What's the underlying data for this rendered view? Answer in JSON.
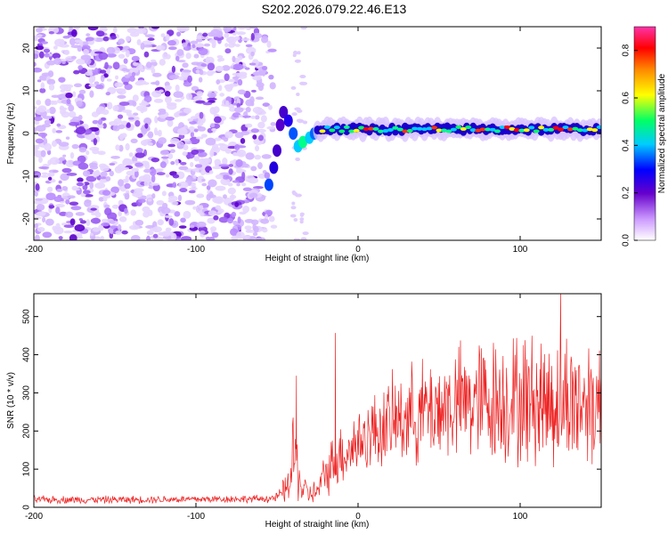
{
  "title": "S202.2026.079.22.46.E13",
  "chart_data": [
    {
      "type": "heatmap",
      "xlabel": "Height of straight line (km)",
      "ylabel": "Frequency (Hz)",
      "xlim": [
        -200,
        150
      ],
      "ylim": [
        -25,
        25
      ],
      "xticks": [
        -200,
        -100,
        0,
        100
      ],
      "yticks": [
        -20,
        -10,
        0,
        10,
        20
      ],
      "colorbar": {
        "label": "Normalized spectral amplitude",
        "range": [
          0,
          0.9
        ],
        "ticks": [
          0,
          0.2,
          0.4,
          0.6,
          0.8
        ],
        "tick_labels": [
          "0.0",
          "0.2",
          "0.4",
          "0.6",
          "0.8"
        ],
        "colormap": [
          "#ffffff",
          "#cc99ff",
          "#6600cc",
          "#0000ff",
          "#00ccff",
          "#00ff66",
          "#ffff00",
          "#ff8800",
          "#ff0000",
          "#ff33aa"
        ]
      },
      "signal": {
        "noise_region_km": [
          -200,
          -55
        ],
        "transition_km": [
          -55,
          -20
        ],
        "band_center_hz": 1,
        "band_start_km": -25,
        "band_end_km": 150
      }
    },
    {
      "type": "line",
      "xlabel": "Height of straight line (km)",
      "ylabel": "SNR (10 * v/v)",
      "xlim": [
        -200,
        150
      ],
      "ylim": [
        0,
        560
      ],
      "xticks": [
        -200,
        -100,
        0,
        100
      ],
      "yticks": [
        0,
        100,
        200,
        300,
        400,
        500
      ],
      "color": "#ee2222",
      "series": [
        {
          "name": "SNR",
          "x": [
            -200,
            -180,
            -160,
            -140,
            -120,
            -100,
            -80,
            -60,
            -50,
            -42,
            -40,
            -38,
            -35,
            -30,
            -25,
            -20,
            -15,
            -10,
            0,
            10,
            20,
            30,
            40,
            50,
            60,
            70,
            80,
            90,
            100,
            110,
            120,
            130,
            140,
            150
          ],
          "mean": [
            20,
            20,
            20,
            20,
            21,
            21,
            22,
            22,
            25,
            60,
            140,
            120,
            50,
            35,
            40,
            90,
            120,
            140,
            170,
            200,
            220,
            240,
            250,
            260,
            270,
            275,
            280,
            280,
            280,
            280,
            280,
            280,
            280,
            280
          ],
          "spread": [
            12,
            12,
            12,
            12,
            12,
            12,
            12,
            12,
            15,
            60,
            150,
            120,
            50,
            35,
            40,
            70,
            90,
            100,
            110,
            120,
            140,
            150,
            160,
            170,
            180,
            190,
            200,
            200,
            210,
            210,
            220,
            220,
            210,
            200
          ]
        }
      ],
      "peaks": [
        {
          "x": -38,
          "y": 345
        },
        {
          "x": -14,
          "y": 457
        },
        {
          "x": 125,
          "y": 560
        }
      ]
    }
  ]
}
